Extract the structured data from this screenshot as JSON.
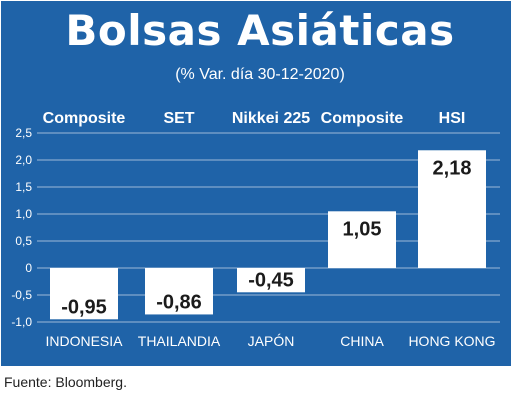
{
  "colors": {
    "panel": "#1f63a8",
    "bar": "#ffffff",
    "grid": "#ffffff",
    "text": "#ffffff",
    "bar_label": "#1b1b1b"
  },
  "title": "Bolsas Asiáticas",
  "subtitle": "(% Var. día 30-12-2020)",
  "index_names": [
    "Composite",
    "SET",
    "Nikkei 225",
    "Composite",
    "HSI"
  ],
  "source": "Fuente: Bloomberg.",
  "chart_data": {
    "type": "bar",
    "categories": [
      "INDONESIA",
      "THAILANDIA",
      "JAPÓN",
      "CHINA",
      "HONG KONG"
    ],
    "values": [
      -0.95,
      -0.86,
      -0.45,
      1.05,
      2.18
    ],
    "value_labels": [
      "-0,95",
      "-0,86",
      "-0,45",
      "1,05",
      "2,18"
    ],
    "yticks": [
      "-1,0",
      "-0,5",
      "0",
      "0,5",
      "1,0",
      "1,5",
      "2,0",
      "2,5"
    ],
    "ylim": [
      -1.0,
      2.5
    ],
    "grid": true
  }
}
